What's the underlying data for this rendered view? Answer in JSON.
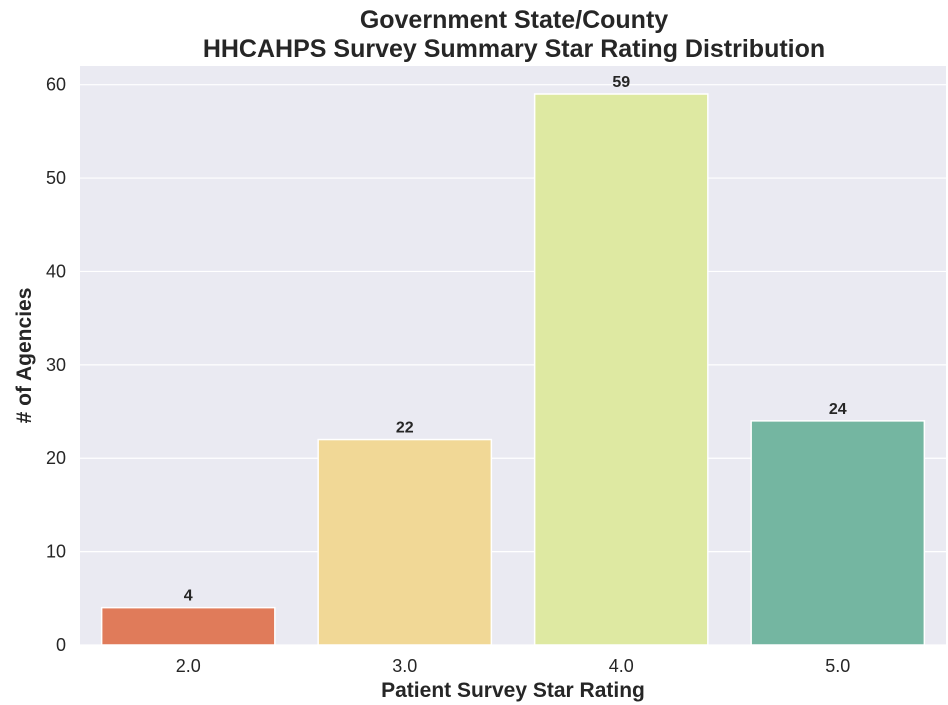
{
  "chart_data": {
    "type": "bar",
    "title_lines": [
      "Government State/County",
      "HHCAHPS Survey Summary Star Rating Distribution"
    ],
    "xlabel": "Patient Survey Star Rating",
    "ylabel": "# of Agencies",
    "categories": [
      "2.0",
      "3.0",
      "4.0",
      "5.0"
    ],
    "values": [
      4,
      22,
      59,
      24
    ],
    "data_labels": [
      "4",
      "22",
      "59",
      "24"
    ],
    "colors": [
      "#e07b5a",
      "#f1d896",
      "#dee9a2",
      "#74b6a1"
    ],
    "ylim": [
      0,
      62
    ],
    "yticks": [
      0,
      10,
      20,
      30,
      40,
      50,
      60
    ],
    "grid": true,
    "plot_background": "#eaeaf2",
    "legend": "none"
  }
}
